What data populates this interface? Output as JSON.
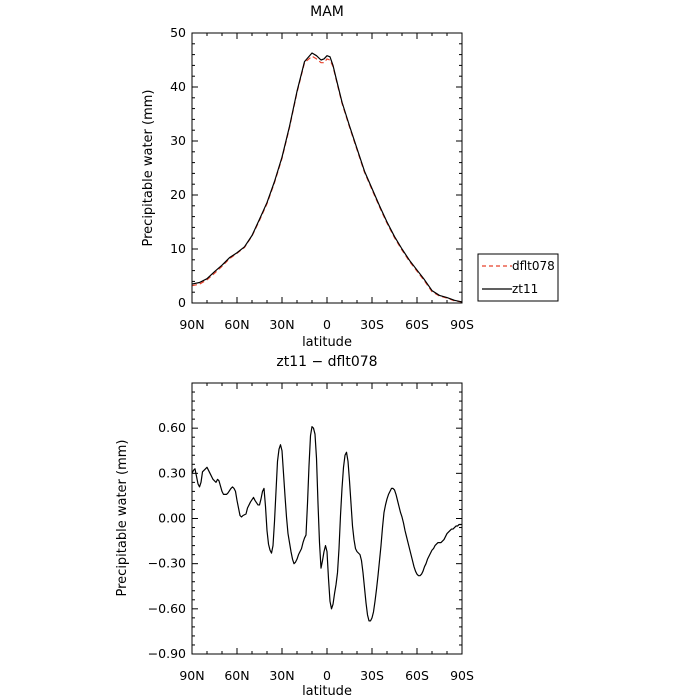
{
  "chart_data": [
    {
      "type": "line",
      "title": "MAM",
      "xlabel": "latitude",
      "ylabel": "Precipitable water (mm)",
      "xlim": [
        90,
        -90
      ],
      "ylim": [
        0,
        50
      ],
      "xticks": [
        90,
        60,
        30,
        0,
        -30,
        -60,
        -90
      ],
      "xtick_labels": [
        "90N",
        "60N",
        "30N",
        "0",
        "30S",
        "60S",
        "90S"
      ],
      "yticks": [
        0,
        10,
        20,
        30,
        40,
        50
      ],
      "ytick_labels": [
        "0",
        "10",
        "20",
        "30",
        "40",
        "50"
      ],
      "legend": {
        "placement": "right"
      },
      "series": [
        {
          "name": "dflt078",
          "color": "#e8402a",
          "style": "dashed",
          "x": [
            90,
            85,
            80,
            75,
            70,
            65,
            60,
            55,
            50,
            45,
            40,
            35,
            30,
            25,
            20,
            15,
            10,
            7,
            4,
            2,
            0,
            -2,
            -4,
            -6,
            -10,
            -15,
            -20,
            -25,
            -30,
            -35,
            -40,
            -45,
            -50,
            -55,
            -60,
            -65,
            -70,
            -75,
            -80,
            -85,
            -90
          ],
          "y": [
            3.2,
            3.5,
            4.3,
            5.5,
            6.8,
            8.2,
            9.2,
            10.3,
            12.4,
            15.3,
            18.4,
            22.3,
            26.8,
            32.5,
            39.0,
            44.5,
            45.7,
            45.2,
            44.5,
            44.5,
            45.2,
            45.0,
            43.8,
            41.5,
            37.0,
            32.6,
            28.4,
            24.2,
            21.0,
            17.8,
            14.8,
            12.1,
            9.8,
            7.7,
            5.9,
            4.1,
            2.1,
            1.3,
            0.9,
            0.4,
            0.2
          ]
        },
        {
          "name": "zt11",
          "color": "#000000",
          "style": "solid",
          "x": [
            90,
            85,
            80,
            75,
            70,
            65,
            60,
            55,
            50,
            45,
            40,
            35,
            30,
            25,
            20,
            15,
            10,
            7,
            4,
            2,
            0,
            -2,
            -4,
            -6,
            -10,
            -15,
            -20,
            -25,
            -30,
            -35,
            -40,
            -45,
            -50,
            -55,
            -60,
            -65,
            -70,
            -75,
            -80,
            -85,
            -90
          ],
          "y": [
            3.5,
            3.8,
            4.5,
            5.8,
            7.0,
            8.4,
            9.3,
            10.4,
            12.5,
            15.5,
            18.6,
            22.5,
            27.0,
            32.7,
            39.2,
            44.7,
            46.3,
            45.8,
            45.0,
            45.2,
            45.8,
            45.6,
            44.0,
            41.7,
            37.2,
            32.8,
            28.6,
            24.4,
            21.2,
            18.0,
            15.0,
            12.3,
            10.0,
            7.9,
            6.1,
            4.3,
            2.3,
            1.4,
            1.0,
            0.5,
            0.2
          ]
        }
      ]
    },
    {
      "type": "line",
      "title": "zt11 − dflt078",
      "xlabel": "latitude",
      "ylabel": "Precipitable water (mm)",
      "xlim": [
        90,
        -90
      ],
      "ylim": [
        -0.9,
        0.9
      ],
      "xticks": [
        90,
        60,
        30,
        0,
        -30,
        -60,
        -90
      ],
      "xtick_labels": [
        "90N",
        "60N",
        "30N",
        "0",
        "30S",
        "60S",
        "90S"
      ],
      "yticks": [
        -0.9,
        -0.6,
        -0.3,
        0.0,
        0.3,
        0.6
      ],
      "ytick_labels": [
        "−0.90",
        "−0.60",
        "−0.30",
        "0.00",
        "0.30",
        "0.60"
      ],
      "series": [
        {
          "color": "#000000",
          "style": "solid",
          "x": [
            90,
            89,
            88,
            87,
            86,
            85,
            84,
            83,
            81,
            80,
            78,
            76,
            74,
            73,
            72,
            70,
            69,
            67,
            66,
            64,
            63,
            62,
            61,
            60,
            58,
            57,
            56,
            54,
            53,
            51,
            49,
            48,
            46,
            45,
            44,
            43,
            42,
            41,
            40,
            39,
            38,
            37,
            36,
            35,
            34,
            33,
            32,
            31,
            30,
            29,
            28,
            27,
            26,
            25,
            24,
            23,
            22,
            21,
            20,
            19,
            18,
            17,
            16,
            15,
            14,
            13,
            12,
            11,
            10,
            9,
            8,
            7,
            6,
            5,
            4,
            3,
            2,
            1,
            0,
            -1,
            -2,
            -3,
            -4,
            -5,
            -6,
            -7,
            -8,
            -9,
            -10,
            -11,
            -12,
            -13,
            -14,
            -15,
            -16,
            -17,
            -18,
            -19,
            -20,
            -21,
            -22,
            -23,
            -24,
            -25,
            -26,
            -27,
            -28,
            -29,
            -30,
            -31,
            -32,
            -33,
            -34,
            -35,
            -36,
            -37,
            -38,
            -39,
            -40,
            -41,
            -42,
            -43,
            -44,
            -45,
            -46,
            -47,
            -48,
            -49,
            -50,
            -51,
            -52,
            -53,
            -54,
            -55,
            -56,
            -57,
            -58,
            -59,
            -60,
            -61,
            -62,
            -63,
            -64,
            -65,
            -66,
            -67,
            -68,
            -69,
            -70,
            -71,
            -72,
            -73,
            -74,
            -75,
            -76,
            -77,
            -78,
            -79,
            -80,
            -81,
            -82,
            -83,
            -84,
            -85,
            -86,
            -87,
            -88,
            -89,
            -90
          ],
          "y": [
            0.3,
            0.32,
            0.33,
            0.28,
            0.23,
            0.21,
            0.24,
            0.31,
            0.33,
            0.34,
            0.3,
            0.26,
            0.24,
            0.26,
            0.25,
            0.18,
            0.16,
            0.16,
            0.17,
            0.2,
            0.21,
            0.2,
            0.18,
            0.12,
            0.02,
            0.01,
            0.02,
            0.03,
            0.07,
            0.11,
            0.14,
            0.12,
            0.09,
            0.09,
            0.13,
            0.18,
            0.2,
            0.08,
            -0.08,
            -0.17,
            -0.21,
            -0.23,
            -0.18,
            -0.02,
            0.18,
            0.38,
            0.46,
            0.49,
            0.45,
            0.3,
            0.15,
            0.01,
            -0.1,
            -0.16,
            -0.22,
            -0.27,
            -0.3,
            -0.29,
            -0.27,
            -0.24,
            -0.22,
            -0.2,
            -0.16,
            -0.13,
            -0.11,
            0.1,
            0.35,
            0.55,
            0.61,
            0.6,
            0.56,
            0.4,
            0.1,
            -0.16,
            -0.33,
            -0.28,
            -0.22,
            -0.18,
            -0.22,
            -0.4,
            -0.55,
            -0.6,
            -0.57,
            -0.5,
            -0.44,
            -0.36,
            -0.2,
            0.02,
            0.2,
            0.34,
            0.42,
            0.44,
            0.38,
            0.25,
            0.1,
            -0.05,
            -0.14,
            -0.2,
            -0.22,
            -0.23,
            -0.24,
            -0.28,
            -0.36,
            -0.46,
            -0.56,
            -0.64,
            -0.68,
            -0.68,
            -0.66,
            -0.62,
            -0.55,
            -0.47,
            -0.38,
            -0.28,
            -0.18,
            -0.06,
            0.04,
            0.09,
            0.13,
            0.16,
            0.18,
            0.2,
            0.2,
            0.19,
            0.16,
            0.12,
            0.08,
            0.04,
            0.01,
            -0.03,
            -0.08,
            -0.12,
            -0.16,
            -0.2,
            -0.24,
            -0.28,
            -0.32,
            -0.35,
            -0.37,
            -0.38,
            -0.38,
            -0.37,
            -0.35,
            -0.32,
            -0.3,
            -0.27,
            -0.25,
            -0.23,
            -0.21,
            -0.2,
            -0.18,
            -0.17,
            -0.16,
            -0.16,
            -0.16,
            -0.15,
            -0.14,
            -0.12,
            -0.1,
            -0.09,
            -0.08,
            -0.07,
            -0.07,
            -0.06,
            -0.05,
            -0.05,
            -0.04,
            -0.04,
            -0.04
          ]
        }
      ]
    }
  ]
}
